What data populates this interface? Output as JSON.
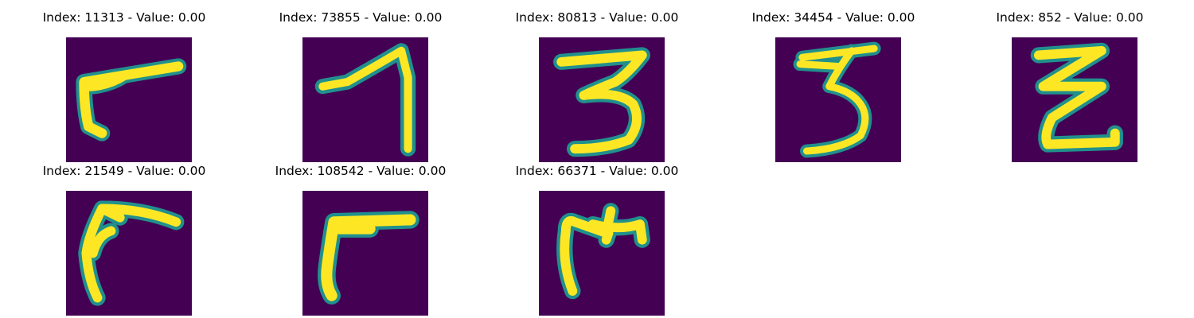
{
  "colors": {
    "background": "#440154",
    "edge": "#21908d",
    "stroke": "#fde725"
  },
  "panels": [
    {
      "title": "Index: 11313 - Value: 0.00",
      "image": "handwritten-7-rotated-icon"
    },
    {
      "title": "Index: 73855 - Value: 0.00",
      "image": "handwritten-7-icon"
    },
    {
      "title": "Index: 80813 - Value: 0.00",
      "image": "handwritten-3-icon"
    },
    {
      "title": "Index: 34454 - Value: 0.00",
      "image": "handwritten-3-thin-icon"
    },
    {
      "title": "Index: 852 - Value: 0.00",
      "image": "handwritten-z-icon"
    },
    {
      "title": "Index: 21549 - Value: 0.00",
      "image": "handwritten-7-curved-icon"
    },
    {
      "title": "Index: 108542 - Value: 0.00",
      "image": "handwritten-7-angled-icon"
    },
    {
      "title": "Index: 66371 - Value: 0.00",
      "image": "handwritten-t-like-icon"
    }
  ]
}
